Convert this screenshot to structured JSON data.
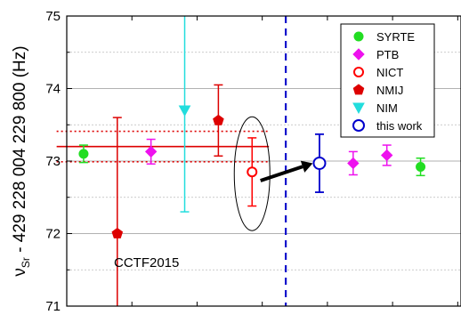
{
  "chart_data": {
    "type": "scatter",
    "title": "",
    "xlabel": "",
    "ylabel": {
      "symbol": "ν",
      "subscript": "Sr",
      "text": " - 429 228 004 229 800 (Hz)"
    },
    "ylim": [
      71,
      75
    ],
    "yticks": [
      "71",
      "72",
      "73",
      "74",
      "75"
    ],
    "grid": {
      "major": true,
      "minor": true
    },
    "legend": {
      "placement": "top-right",
      "entries": [
        {
          "label": "SYRTE",
          "color": "#22dd22",
          "marker": "circle",
          "filled": true
        },
        {
          "label": "PTB",
          "color": "#ee11ee",
          "marker": "diamond",
          "filled": true
        },
        {
          "label": "NICT",
          "color": "#ff0000",
          "marker": "circle",
          "filled": false
        },
        {
          "label": "NMIJ",
          "color": "#dd0000",
          "marker": "pentagon",
          "filled": true
        },
        {
          "label": "NIM",
          "color": "#22dddd",
          "marker": "triangle-down",
          "filled": true
        },
        {
          "label": "this work",
          "color": "#0000cc",
          "marker": "circle",
          "filled": false
        }
      ]
    },
    "points": [
      {
        "series": "SYRTE",
        "x": 1,
        "y": 73.1,
        "err": 0.12,
        "color": "#22dd22",
        "marker": "circle"
      },
      {
        "series": "NMIJ",
        "x": 2,
        "y": 72.0,
        "err": 1.6,
        "color": "#dd0000",
        "marker": "pentagon"
      },
      {
        "series": "PTB",
        "x": 3,
        "y": 73.13,
        "err": 0.17,
        "color": "#ee11ee",
        "marker": "diamond"
      },
      {
        "series": "NIM",
        "x": 4,
        "y": 73.7,
        "err": 1.4,
        "color": "#22dddd",
        "marker": "triangle-down"
      },
      {
        "series": "NMIJ",
        "x": 5,
        "y": 73.56,
        "err": 0.49,
        "color": "#dd0000",
        "marker": "pentagon"
      },
      {
        "series": "NICT",
        "x": 6,
        "y": 72.85,
        "err": 0.47,
        "color": "#ff0000",
        "marker": "circle"
      },
      {
        "series": "this work",
        "x": 8,
        "y": 72.97,
        "err": 0.4,
        "color": "#0000cc",
        "marker": "circle"
      },
      {
        "series": "PTB",
        "x": 9,
        "y": 72.97,
        "err": 0.16,
        "color": "#ee11ee",
        "marker": "diamond"
      },
      {
        "series": "PTB",
        "x": 10,
        "y": 73.08,
        "err": 0.14,
        "color": "#ee11ee",
        "marker": "diamond"
      },
      {
        "series": "SYRTE",
        "x": 11,
        "y": 72.92,
        "err": 0.12,
        "color": "#22dd22",
        "marker": "circle"
      }
    ],
    "reference": {
      "value": 73.2,
      "lower": 72.99,
      "upper": 73.41,
      "x_range": [
        0.2,
        6.5
      ],
      "color": "#dd0000"
    },
    "divider": {
      "x": 7.0,
      "color": "#1111cc"
    },
    "arrow": {
      "from": {
        "x": 6.25,
        "y": 72.73
      },
      "to": {
        "x": 7.8,
        "y": 72.97
      }
    },
    "annotation": {
      "text": "CCTF2015",
      "x": 1.9,
      "y": 71.6
    }
  }
}
